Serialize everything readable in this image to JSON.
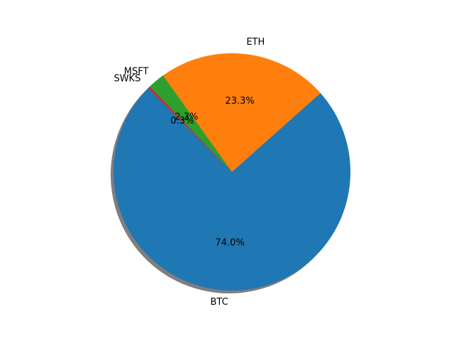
{
  "chart_data": {
    "type": "pie",
    "title": "",
    "labels": [
      "BTC",
      "ETH",
      "MSFT",
      "SWKS"
    ],
    "values": [
      74.0,
      23.3,
      2.3,
      0.3
    ],
    "value_labels": [
      "74.0%",
      "23.3%",
      "2.3%",
      "0.3%"
    ],
    "colors": [
      "#1f77b4",
      "#ff7f0e",
      "#2ca02c",
      "#d62728"
    ],
    "start_angle_deg": 135,
    "direction": "counterclockwise",
    "shadow": true,
    "legend": "none"
  }
}
